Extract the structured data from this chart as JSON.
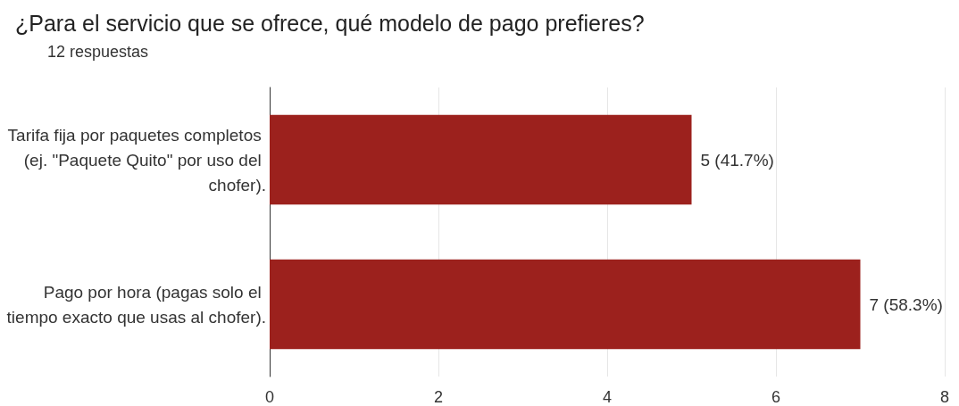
{
  "chart_data": {
    "type": "bar",
    "orientation": "horizontal",
    "title": "¿Para el servicio que se ofrece, qué modelo de pago prefieres?",
    "subtitle": "12 respuestas",
    "categories": [
      "Tarifa fija por paquetes completos (ej. \"Paquete Quito\" por uso del chofer).",
      "Pago por hora (pagas solo el tiempo exacto que usas al chofer)."
    ],
    "values": [
      5,
      7
    ],
    "value_labels": [
      "5 (41.7%)",
      "7 (58.3%)"
    ],
    "color": "#9c211d",
    "xlim": [
      0,
      8
    ],
    "xticks": [
      0,
      2,
      4,
      6,
      8
    ],
    "grid": "x"
  }
}
